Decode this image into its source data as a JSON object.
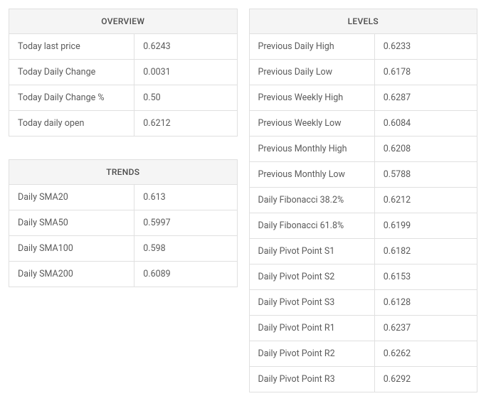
{
  "overview": {
    "title": "OVERVIEW",
    "rows": [
      {
        "label": "Today last price",
        "value": "0.6243"
      },
      {
        "label": "Today Daily Change",
        "value": "0.0031"
      },
      {
        "label": "Today Daily Change %",
        "value": "0.50"
      },
      {
        "label": "Today daily open",
        "value": "0.6212"
      }
    ]
  },
  "trends": {
    "title": "TRENDS",
    "rows": [
      {
        "label": "Daily SMA20",
        "value": "0.613"
      },
      {
        "label": "Daily SMA50",
        "value": "0.5997"
      },
      {
        "label": "Daily SMA100",
        "value": "0.598"
      },
      {
        "label": "Daily SMA200",
        "value": "0.6089"
      }
    ]
  },
  "levels": {
    "title": "LEVELS",
    "rows": [
      {
        "label": "Previous Daily High",
        "value": "0.6233"
      },
      {
        "label": "Previous Daily Low",
        "value": "0.6178"
      },
      {
        "label": "Previous Weekly High",
        "value": "0.6287"
      },
      {
        "label": "Previous Weekly Low",
        "value": "0.6084"
      },
      {
        "label": "Previous Monthly High",
        "value": "0.6208"
      },
      {
        "label": "Previous Monthly Low",
        "value": "0.5788"
      },
      {
        "label": "Daily Fibonacci 38.2%",
        "value": "0.6212"
      },
      {
        "label": "Daily Fibonacci 61.8%",
        "value": "0.6199"
      },
      {
        "label": "Daily Pivot Point S1",
        "value": "0.6182"
      },
      {
        "label": "Daily Pivot Point S2",
        "value": "0.6153"
      },
      {
        "label": "Daily Pivot Point S3",
        "value": "0.6128"
      },
      {
        "label": "Daily Pivot Point R1",
        "value": "0.6237"
      },
      {
        "label": "Daily Pivot Point R2",
        "value": "0.6262"
      },
      {
        "label": "Daily Pivot Point R3",
        "value": "0.6292"
      }
    ]
  }
}
